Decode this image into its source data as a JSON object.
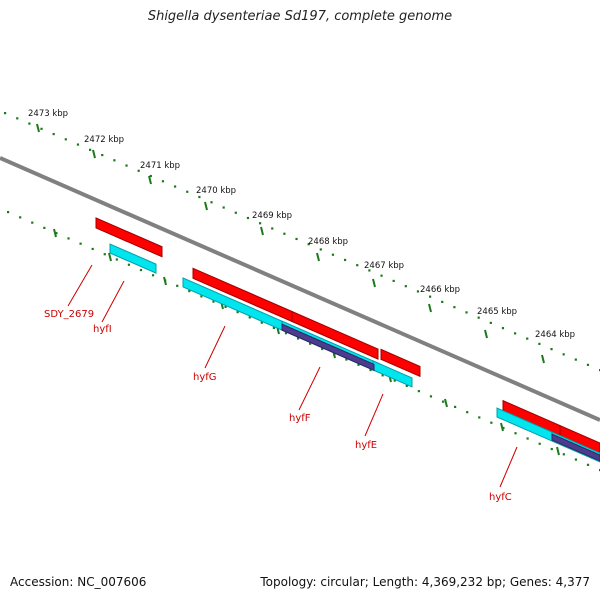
{
  "title": "Shigella dysenteriae Sd197, complete genome",
  "footer": {
    "accession": "Accession: NC_007606",
    "summary": "Topology: circular; Length: 4,369,232 bp; Genes: 4,377"
  },
  "ruler_ticks": [
    "2473 kbp",
    "2472 kbp",
    "2471 kbp",
    "2470 kbp",
    "2469 kbp",
    "2468 kbp",
    "2467 kbp",
    "2466 kbp",
    "2465 kbp",
    "2464 kbp"
  ],
  "genes": [
    "SDY_2679",
    "hyfI",
    "hyfG",
    "hyfF",
    "hyfE",
    "hyfC"
  ],
  "colors": {
    "backbone": "#808080",
    "ruler_dots": "#1a7a1a",
    "cds_forward": "#ff0000",
    "cds_feature": "#00e5ee",
    "cds_overlap": "#4b3c8f",
    "gene_label": "#cc0000"
  }
}
